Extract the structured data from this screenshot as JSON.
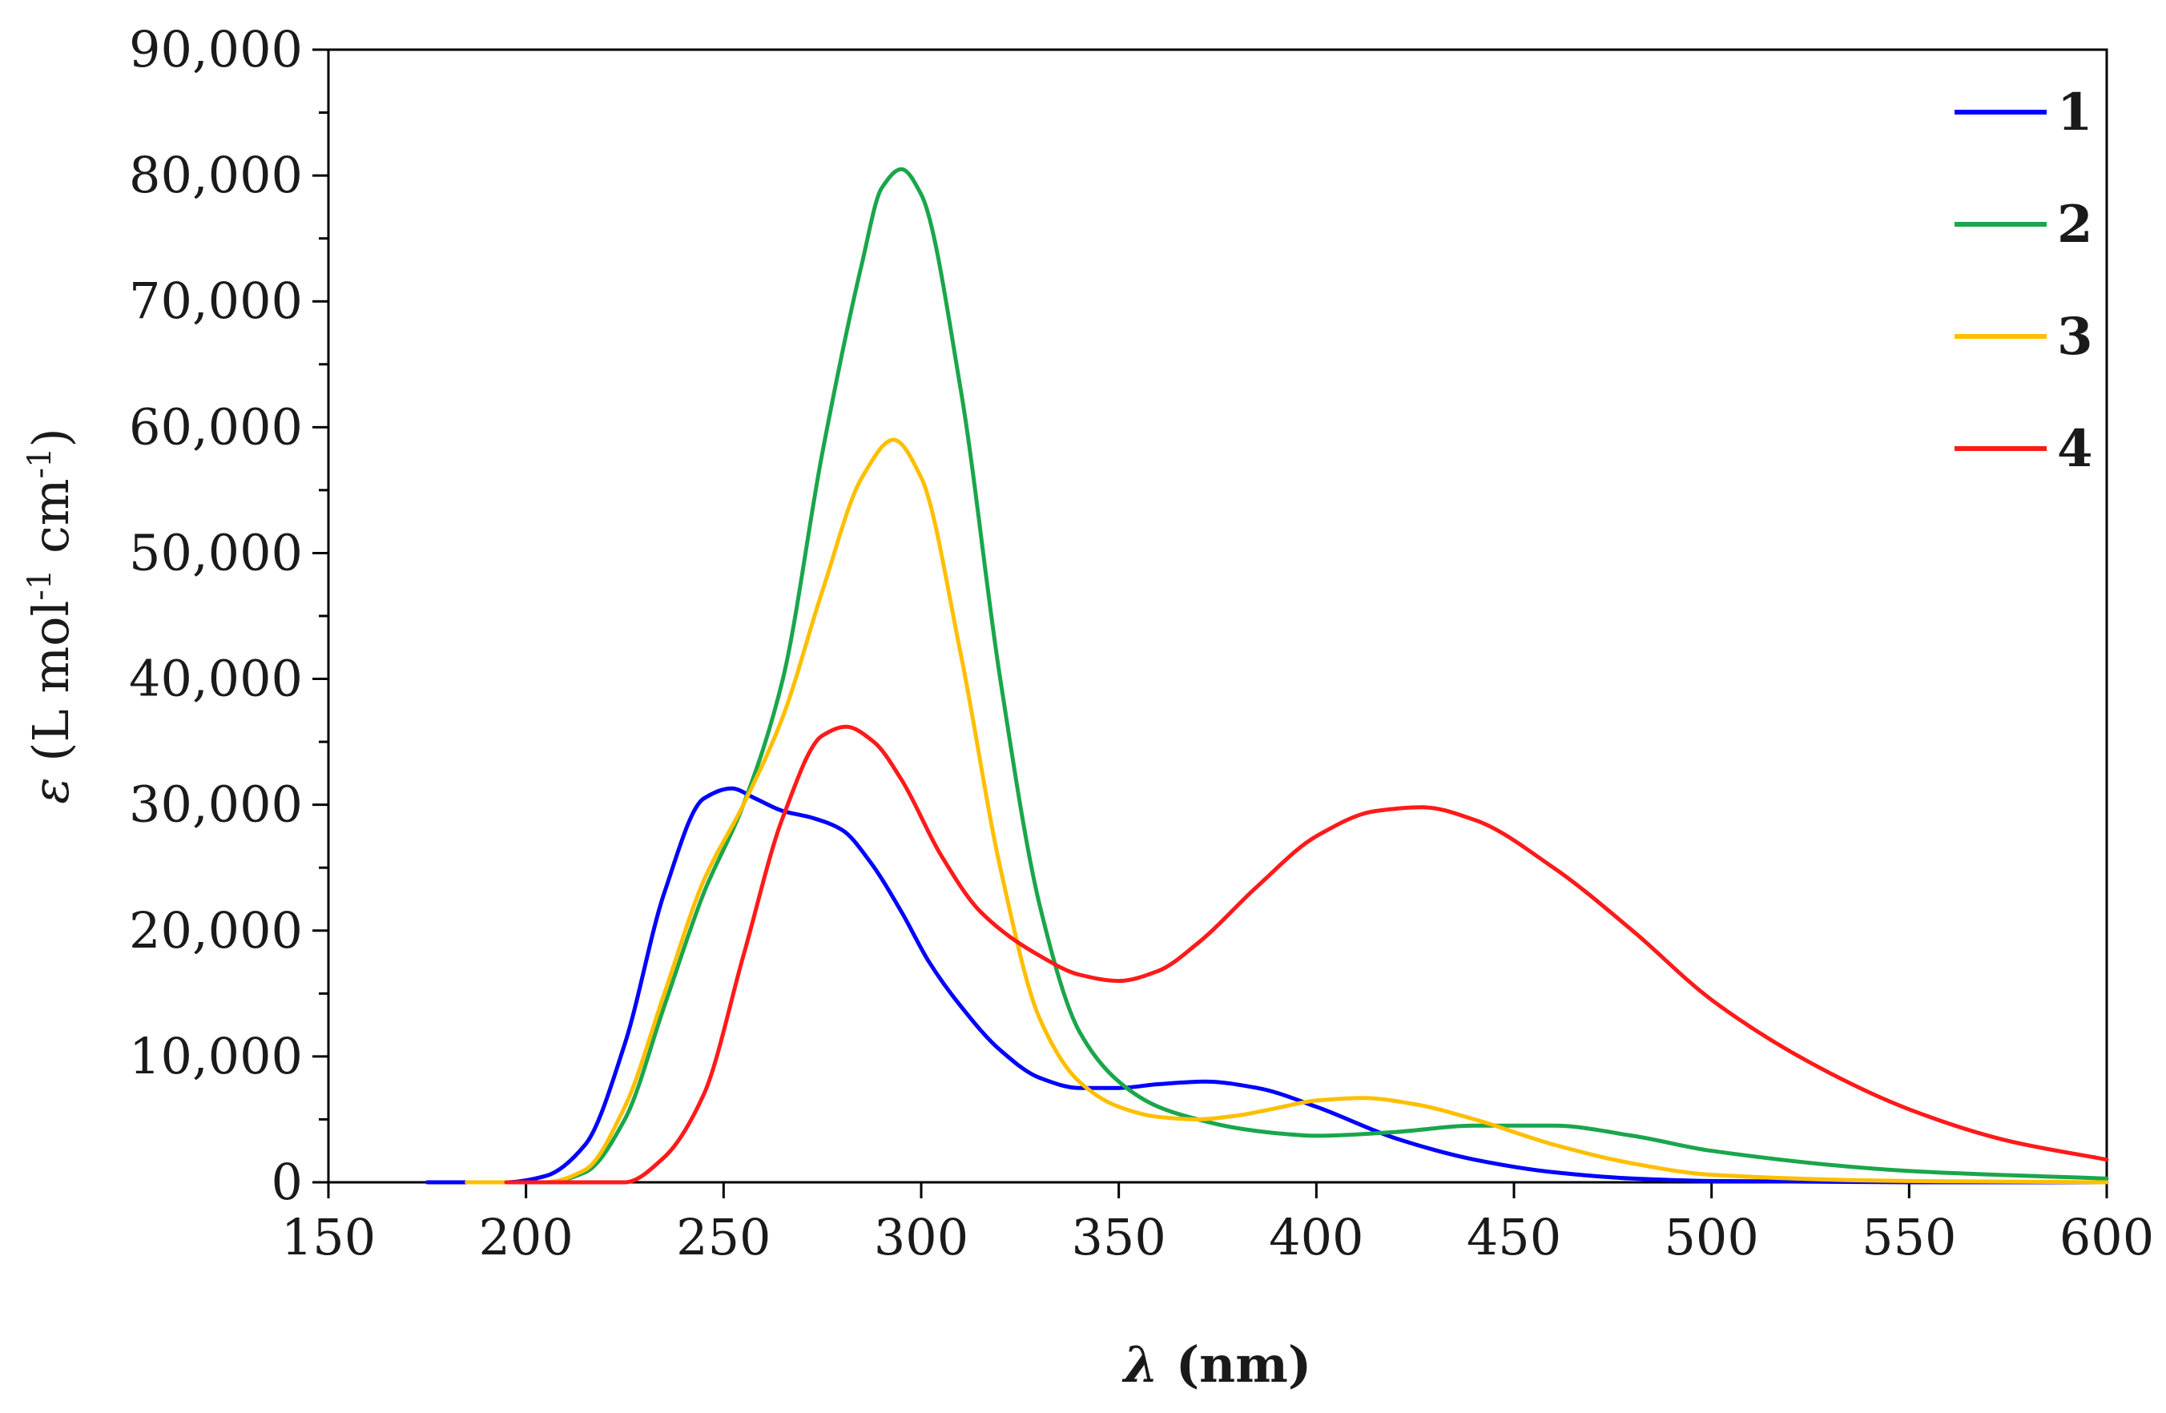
{
  "chart_data": {
    "type": "line",
    "title": "",
    "xlabel_symbol": "λ",
    "xlabel_unit": " (nm)",
    "ylabel_symbol": "ε",
    "ylabel_open": " (L mol",
    "ylabel_exp1": "-1",
    "ylabel_mid": " cm",
    "ylabel_exp2": "-1",
    "ylabel_close": ")",
    "xlim": [
      150,
      600
    ],
    "ylim": [
      0,
      90000
    ],
    "xticks": [
      "150",
      "200",
      "250",
      "300",
      "350",
      "400",
      "450",
      "500",
      "550",
      "600"
    ],
    "yticks": [
      "0",
      "10,000",
      "20,000",
      "30,000",
      "40,000",
      "50,000",
      "60,000",
      "70,000",
      "80,000",
      "90,000"
    ],
    "legend_position": "top-right",
    "series": [
      {
        "name": "1",
        "color": "#0000ff",
        "x": [
          175,
          195,
          205,
          215,
          225,
          235,
          245,
          252,
          258,
          265,
          272,
          280,
          287,
          295,
          302,
          310,
          320,
          330,
          340,
          350,
          360,
          372,
          385,
          400,
          420,
          440,
          460,
          480,
          500,
          550,
          600
        ],
        "y": [
          0,
          0,
          500,
          3000,
          11000,
          23000,
          30500,
          31300,
          30500,
          29500,
          29000,
          28000,
          25500,
          21500,
          17500,
          14000,
          10500,
          8300,
          7500,
          7500,
          7800,
          8000,
          7500,
          6000,
          3500,
          1800,
          800,
          300,
          100,
          0,
          0
        ]
      },
      {
        "name": "2",
        "color": "#1aa64b",
        "x": [
          185,
          205,
          215,
          225,
          235,
          245,
          255,
          265,
          275,
          285,
          290,
          295,
          300,
          310,
          320,
          330,
          340,
          350,
          360,
          370,
          380,
          390,
          400,
          420,
          440,
          460,
          480,
          500,
          550,
          600
        ],
        "y": [
          0,
          0,
          800,
          5000,
          14000,
          23000,
          30000,
          40000,
          58000,
          73000,
          79000,
          80500,
          78500,
          63000,
          40000,
          22000,
          12000,
          8000,
          6000,
          5000,
          4300,
          3900,
          3700,
          4000,
          4500,
          4500,
          3700,
          2500,
          900,
          300
        ]
      },
      {
        "name": "3",
        "color": "#ffbf00",
        "x": [
          185,
          205,
          215,
          225,
          235,
          245,
          255,
          265,
          275,
          285,
          293,
          300,
          310,
          320,
          330,
          340,
          350,
          360,
          370,
          380,
          390,
          400,
          412,
          425,
          440,
          460,
          480,
          500,
          550,
          600
        ],
        "y": [
          0,
          0,
          1000,
          6000,
          15000,
          24000,
          30000,
          37000,
          47000,
          56000,
          59000,
          56000,
          42000,
          25000,
          13000,
          8000,
          6000,
          5200,
          5000,
          5300,
          5900,
          6500,
          6700,
          6200,
          5000,
          3000,
          1500,
          600,
          100,
          0
        ]
      },
      {
        "name": "4",
        "color": "#ff1a1a",
        "x": [
          195,
          225,
          235,
          245,
          255,
          265,
          275,
          281,
          288,
          295,
          305,
          315,
          330,
          340,
          350,
          360,
          370,
          385,
          400,
          415,
          427,
          440,
          460,
          480,
          500,
          525,
          550,
          575,
          600
        ],
        "y": [
          0,
          0,
          2000,
          7000,
          18000,
          29000,
          35500,
          36200,
          35000,
          32000,
          26000,
          21500,
          18000,
          16500,
          16000,
          16800,
          19000,
          23500,
          27500,
          29500,
          29800,
          28800,
          25000,
          20000,
          14500,
          9500,
          5800,
          3300,
          1800
        ]
      }
    ]
  }
}
